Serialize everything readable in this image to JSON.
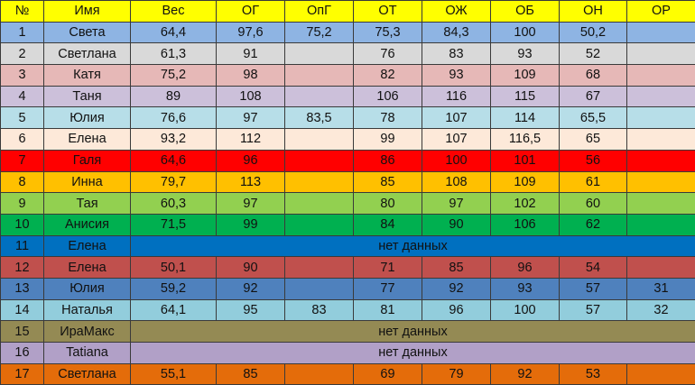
{
  "columns": [
    "№",
    "Имя",
    "Вес",
    "ОГ",
    "ОпГ",
    "ОТ",
    "ОЖ",
    "ОБ",
    "ОН",
    "ОР"
  ],
  "header_color": "#ffff00",
  "no_data_label": "нет данных",
  "rows": [
    {
      "color": "#8eb4e3",
      "cells": [
        "1",
        "Света",
        "64,4",
        "97,6",
        "75,2",
        "75,3",
        "84,3",
        "100",
        "50,2",
        ""
      ]
    },
    {
      "color": "#d9d9d9",
      "cells": [
        "2",
        "Светлана",
        "61,3",
        "91",
        "",
        "76",
        "83",
        "93",
        "52",
        ""
      ]
    },
    {
      "color": "#e6b8b7",
      "cells": [
        "3",
        "Катя",
        "75,2",
        "98",
        "",
        "82",
        "93",
        "109",
        "68",
        ""
      ]
    },
    {
      "color": "#ccc0da",
      "cells": [
        "4",
        "Таня",
        "89",
        "108",
        "",
        "106",
        "116",
        "115",
        "67",
        ""
      ]
    },
    {
      "color": "#b7dee8",
      "cells": [
        "5",
        "Юлия",
        "76,6",
        "97",
        "83,5",
        "78",
        "107",
        "114",
        "65,5",
        ""
      ]
    },
    {
      "color": "#fde9d9",
      "cells": [
        "6",
        "Елена",
        "93,2",
        "112",
        "",
        "99",
        "107",
        "116,5",
        "65",
        ""
      ]
    },
    {
      "color": "#ff0000",
      "cells": [
        "7",
        "Галя",
        "64,6",
        "96",
        "",
        "86",
        "100",
        "101",
        "56",
        ""
      ]
    },
    {
      "color": "#ffc000",
      "cells": [
        "8",
        "Инна",
        "79,7",
        "113",
        "",
        "85",
        "108",
        "109",
        "61",
        ""
      ]
    },
    {
      "color": "#92d050",
      "cells": [
        "9",
        "Тая",
        "60,3",
        "97",
        "",
        "80",
        "97",
        "102",
        "60",
        ""
      ]
    },
    {
      "color": "#00b050",
      "cells": [
        "10",
        "Анисия",
        "71,5",
        "99",
        "",
        "84",
        "90",
        "106",
        "62",
        ""
      ]
    },
    {
      "color": "#0070c0",
      "no_data": true,
      "cells": [
        "11",
        "Елена"
      ]
    },
    {
      "color": "#c0504d",
      "cells": [
        "12",
        "Елена",
        "50,1",
        "90",
        "",
        "71",
        "85",
        "96",
        "54",
        ""
      ]
    },
    {
      "color": "#4f81bd",
      "cells": [
        "13",
        "Юлия",
        "59,2",
        "92",
        "",
        "77",
        "92",
        "93",
        "57",
        "31"
      ]
    },
    {
      "color": "#92cddc",
      "cells": [
        "14",
        "Наталья",
        "64,1",
        "95",
        "83",
        "81",
        "96",
        "100",
        "57",
        "32"
      ]
    },
    {
      "color": "#948a54",
      "no_data": true,
      "cells": [
        "15",
        "ИраМакс"
      ]
    },
    {
      "color": "#b1a0c7",
      "no_data": true,
      "cells": [
        "16",
        "Tatiana"
      ]
    },
    {
      "color": "#e46c0a",
      "cells": [
        "17",
        "Светлана",
        "55,1",
        "85",
        "",
        "69",
        "79",
        "92",
        "53",
        ""
      ]
    }
  ]
}
